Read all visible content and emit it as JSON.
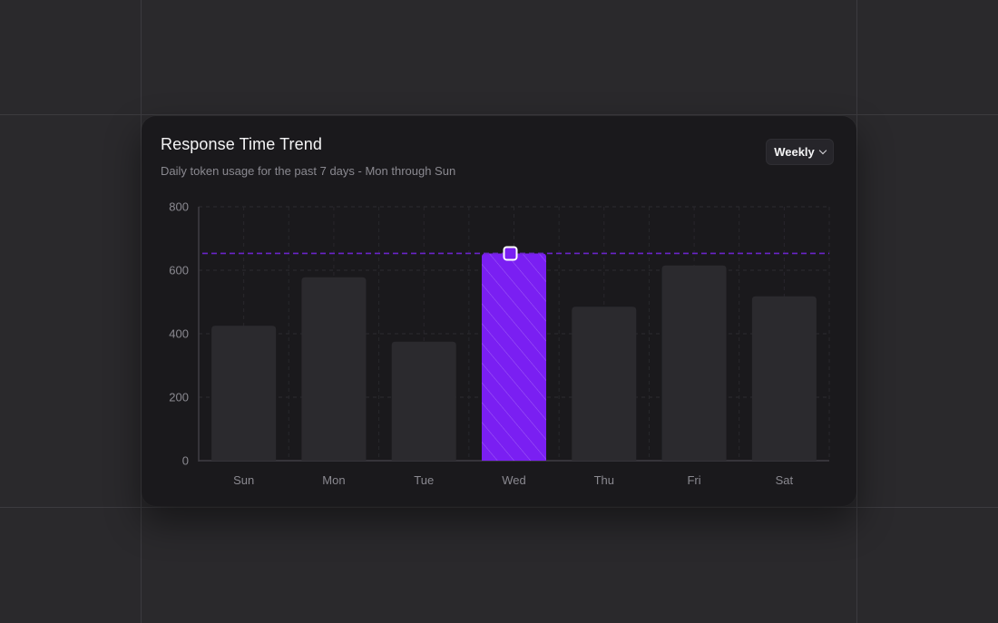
{
  "card": {
    "title": "Response Time Trend",
    "subtitle": "Daily token usage for the past 7 days - Mon through Sun",
    "period_select": {
      "value": "Weekly",
      "icon": "chevron-down-icon"
    }
  },
  "colors": {
    "page_background": "#2a292c",
    "card_background": "#1a191c",
    "bar_default": "#2b2a2e",
    "bar_highlight": "#7a1ff2",
    "reference_line": "#6a24c9"
  },
  "chart_data": {
    "type": "bar",
    "title": "",
    "xlabel": "",
    "ylabel": "",
    "categories": [
      "Sun",
      "Mon",
      "Tue",
      "Wed",
      "Thu",
      "Fri",
      "Sat"
    ],
    "values": [
      425,
      578,
      375,
      653,
      485,
      615,
      518
    ],
    "ylim": [
      0,
      800
    ],
    "yticks": [
      0,
      200,
      400,
      600,
      800
    ],
    "highlighted_category": "Wed",
    "reference_line": {
      "value": 653,
      "style": "dashed"
    },
    "grid": true
  }
}
